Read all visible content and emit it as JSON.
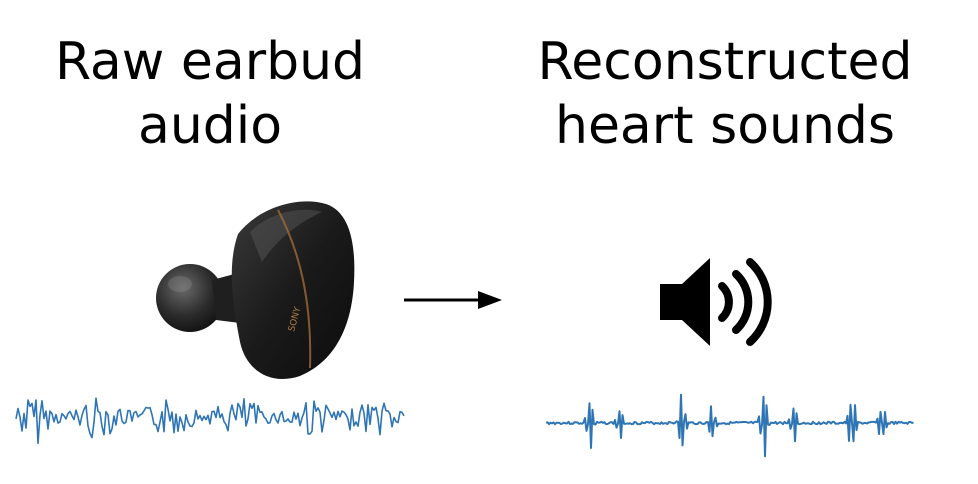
{
  "left_panel": {
    "line1": "Raw earbud",
    "line2": "audio",
    "device_brand": "SONY",
    "device_icon": "earbud-icon",
    "waveform_color": "#2e75b6"
  },
  "right_panel": {
    "line1": "Reconstructed",
    "line2": "heart sounds",
    "icon": "speaker-icon",
    "waveform_color": "#2e75b6"
  },
  "connector": {
    "icon": "right-arrow-icon"
  }
}
